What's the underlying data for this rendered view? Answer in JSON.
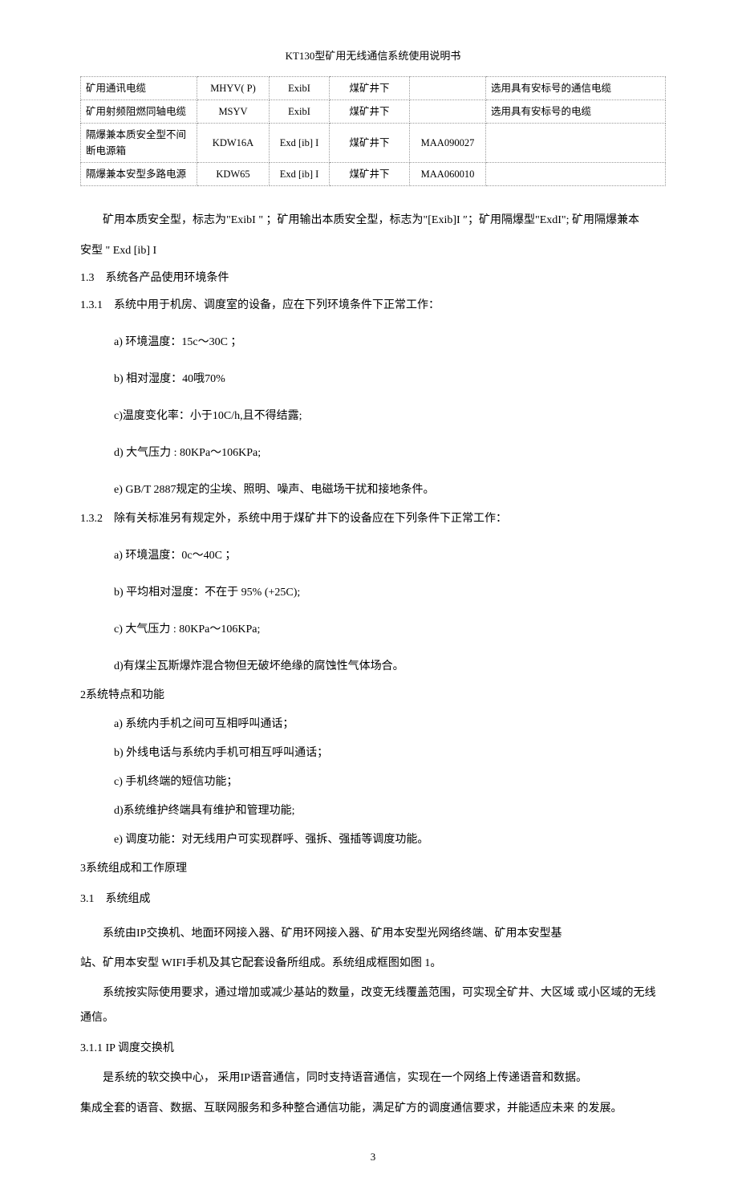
{
  "doc_title": "KT130型矿用无线通信系统使用说明书",
  "table": {
    "rows": [
      [
        "矿用通讯电缆",
        "MHYV( P)",
        "ExibI",
        "煤矿井下",
        "",
        "选用具有安标号的通信电缆"
      ],
      [
        "矿用射频阻燃同轴电缆",
        "MSYV",
        "ExibI",
        "煤矿井下",
        "",
        "选用具有安标号的电缆"
      ],
      [
        "隔爆兼本质安全型不间 断电源箱",
        "KDW16A",
        "Exd [ib] I",
        "煤矿井下",
        "MAA090027",
        ""
      ],
      [
        "隔爆兼本安型多路电源",
        "KDW65",
        "Exd [ib] I",
        "煤矿井下",
        "MAA060010",
        ""
      ]
    ]
  },
  "p1_a": "矿用本质安全型，标志为\"ExibI \"  ；矿用输出本质安全型，标志为\"[Exib]I ″；矿用隔爆型\"ExdI\"; 矿用隔爆兼本",
  "p1_b": "安型 \"  Exd [ib] I",
  "s13_num": "1.3",
  "s13_title": "系统各产品使用环境条件",
  "s131_num": "1.3.1",
  "s131_title": "系统中用于机房、调度室的设备，应在下列环境条件下正常工作：",
  "s131_a": "a)    环境温度：15c〜30C ；",
  "s131_b": "b)    相对湿度：40哦70%",
  "s131_c": "c)温度变化率：小于10C/h,且不得结露;",
  "s131_d": "d)    大气压力 : 80KPa〜106KPa;",
  "s131_e": "e)    GB/T 2887规定的尘埃、照明、噪声、电磁场干扰和接地条件。",
  "s132_num": "1.3.2",
  "s132_title": "除有关标准另有规定外，系统中用于煤矿井下的设备应在下列条件下正常工作：",
  "s132_a": "a)    环境温度：0c〜40C ；",
  "s132_b": "b)    平均相对湿度：不在于 95% (+25C);",
  "s132_c": "c)    大气压力 : 80KPa〜106KPa;",
  "s132_d": "d)有煤尘瓦斯爆炸混合物但无破坏绝缘的腐蚀性气体场合。",
  "s2": "2系统特点和功能",
  "s2_a": "a)    系统内手机之间可互相呼叫通话；",
  "s2_b": "b)    外线电话与系统内手机可相互呼叫通话；",
  "s2_c": "c)    手机终端的短信功能；",
  "s2_d": "d)系统维护终端具有维护和管理功能;",
  "s2_e": "e) 调度功能：对无线用户可实现群呼、强拆、强插等调度功能。",
  "s3": "3系统组成和工作原理",
  "s31_num": "3.1",
  "s31_title": "系统组成",
  "p31_a": "系统由IP交换机、地面环网接入器、矿用环网接入器、矿用本安型光网络终端、矿用本安型基",
  "p31_b": "站、矿用本安型 WIFI手机及其它配套设备所组成。系统组成框图如图          1。",
  "p31_c": "系统按实际使用要求，通过增加或减少基站的数量，改变无线覆盖范围，可实现全矿井、大区域 或小区域的无线通信。",
  "s311": "3.1.1 IP 调度交换机",
  "p311_a": "是系统的软交换中心，    采用IP语音通信，同时支持语音通信，实现在一个网络上传递语音和数据。",
  "p311_b": "集成全套的语音、数据、互联网服务和多种整合通信功能，满足矿方的调度通信要求，并能适应未来 的发展。",
  "page_number": "3"
}
